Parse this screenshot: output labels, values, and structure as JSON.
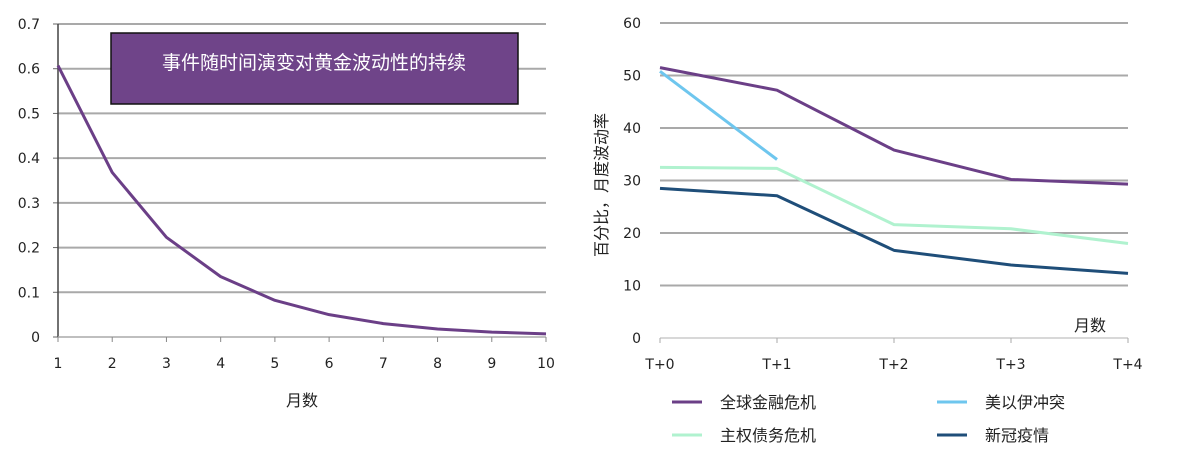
{
  "chart_data": [
    {
      "type": "line",
      "title": "事件随时间演变对黄金波动性的持续",
      "xlabel": "月数",
      "ylabel": "",
      "x": [
        1,
        2,
        3,
        4,
        5,
        6,
        7,
        8,
        9,
        10
      ],
      "xlim": [
        1,
        10
      ],
      "ylim": [
        0,
        0.7
      ],
      "yticks": [
        "0",
        "0.1",
        "0.2",
        "0.3",
        "0.4",
        "0.5",
        "0.6",
        "0.7"
      ],
      "xticks": [
        "1",
        "2",
        "3",
        "4",
        "5",
        "6",
        "7",
        "8",
        "9",
        "10"
      ],
      "grid": true,
      "series": [
        {
          "values": [
            0.607,
            0.368,
            0.223,
            0.135,
            0.082,
            0.05,
            0.03,
            0.018,
            0.011,
            0.007
          ],
          "color": "#6b3f87"
        }
      ],
      "title_box_color": "#6f4489"
    },
    {
      "type": "line",
      "xlabel": "月数",
      "ylabel": "百分比，月度波动率",
      "categories": [
        "T+0",
        "T+1",
        "T+2",
        "T+3",
        "T+4"
      ],
      "ylim": [
        0,
        60
      ],
      "yticks": [
        "0",
        "10",
        "20",
        "30",
        "40",
        "50",
        "60"
      ],
      "grid": true,
      "legend_position": "bottom",
      "series": [
        {
          "name": "全球金融危机",
          "values": [
            51.5,
            47.2,
            35.8,
            30.2,
            29.3
          ],
          "color": "#6b3f87"
        },
        {
          "name": "美以伊冲突",
          "values": [
            50.8,
            34.0,
            null,
            null,
            null
          ],
          "color": "#6ec6ee"
        },
        {
          "name": "主权债务危机",
          "values": [
            32.5,
            32.3,
            21.6,
            20.8,
            18.0
          ],
          "color": "#b0f2cf"
        },
        {
          "name": "新冠疫情",
          "values": [
            28.5,
            27.1,
            16.7,
            13.9,
            12.3
          ],
          "color": "#1f4e79"
        }
      ]
    }
  ]
}
